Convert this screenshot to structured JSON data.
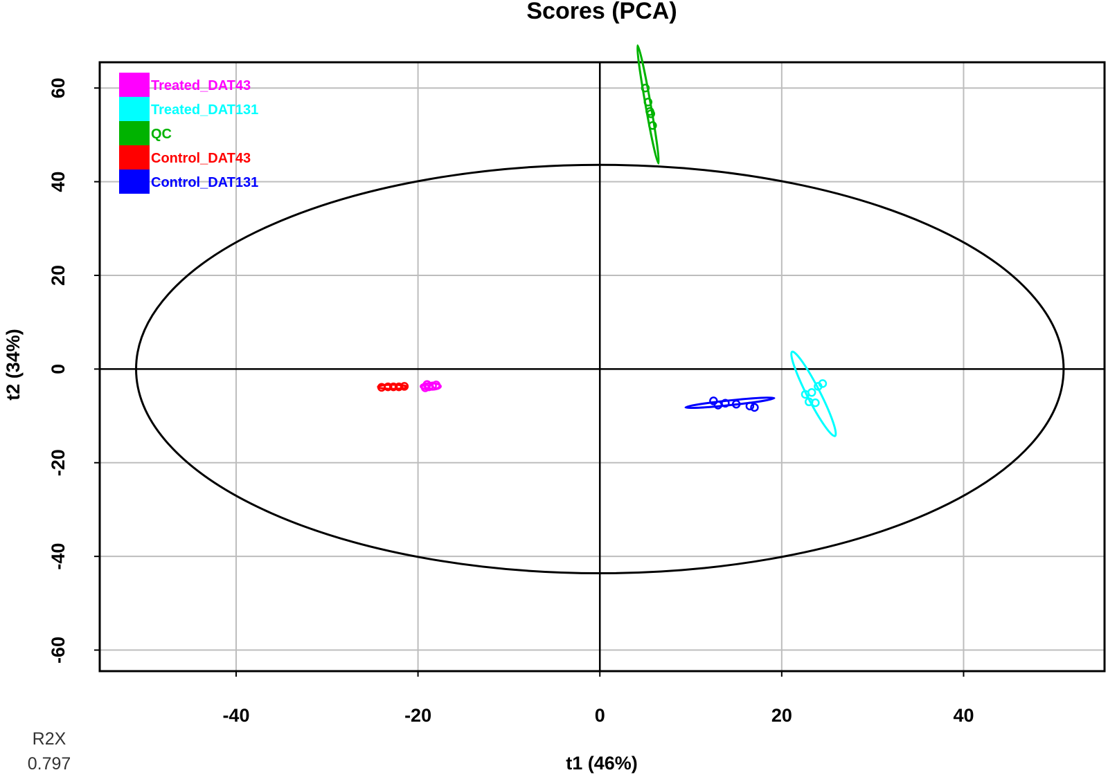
{
  "chart_data": {
    "type": "scatter",
    "title": "Scores (PCA)",
    "xlabel": "t1 (46%)",
    "ylabel": "t2 (34%)",
    "xlim": [
      -55,
      55.5
    ],
    "ylim": [
      -64.5,
      65.5
    ],
    "x_ticks": [
      -40,
      -20,
      0,
      20,
      40
    ],
    "y_ticks": [
      -60,
      -40,
      -20,
      0,
      20,
      40,
      60
    ],
    "grid": true,
    "legend_position": "top-left",
    "hotelling_ellipse": {
      "center": [
        0,
        0
      ],
      "rx": 51,
      "ry": 43.6
    },
    "series": [
      {
        "name": "Treated_DAT43",
        "color": "#ff00ff",
        "points": [
          [
            -19.2,
            -4.0
          ],
          [
            -18.8,
            -3.8
          ],
          [
            -18.4,
            -3.6
          ],
          [
            -18.0,
            -3.4
          ],
          [
            -19.0,
            -3.3
          ]
        ],
        "ellipse": {
          "center": [
            -18.6,
            -3.7
          ],
          "rx": 1.1,
          "ry": 0.7,
          "angle": 0
        }
      },
      {
        "name": "Treated_DAT131",
        "color": "#00ffff",
        "points": [
          [
            22.6,
            -5.4
          ],
          [
            23.3,
            -5.0
          ],
          [
            24.0,
            -3.7
          ],
          [
            24.5,
            -3.1
          ],
          [
            23.0,
            -7.0
          ],
          [
            23.7,
            -7.2
          ]
        ],
        "ellipse": {
          "center": [
            23.5,
            -5.3
          ],
          "rx": 5.2,
          "ry": 1.4,
          "angle": -63
        }
      },
      {
        "name": "QC",
        "color": "#00b300",
        "points": [
          [
            5.0,
            60.0
          ],
          [
            5.3,
            57.0
          ],
          [
            5.5,
            55.0
          ],
          [
            5.6,
            54.5
          ],
          [
            5.8,
            52.0
          ]
        ],
        "ellipse": {
          "center": [
            5.3,
            56.5
          ],
          "rx": 6.6,
          "ry": 0.55,
          "angle": -80
        }
      },
      {
        "name": "Control_DAT43",
        "color": "#ff0000",
        "points": [
          [
            -24.0,
            -3.9
          ],
          [
            -23.3,
            -3.8
          ],
          [
            -22.7,
            -3.8
          ],
          [
            -22.1,
            -3.8
          ],
          [
            -21.5,
            -3.7
          ]
        ],
        "ellipse": {
          "center": [
            -22.8,
            -3.8
          ],
          "rx": 1.6,
          "ry": 0.45,
          "angle": 0
        }
      },
      {
        "name": "Control_DAT131",
        "color": "#0000ff",
        "points": [
          [
            12.5,
            -6.8
          ],
          [
            13.0,
            -7.7
          ],
          [
            13.8,
            -7.3
          ],
          [
            15.0,
            -7.5
          ],
          [
            16.5,
            -7.9
          ],
          [
            17.0,
            -8.2
          ]
        ],
        "ellipse": {
          "center": [
            14.3,
            -7.2
          ],
          "rx": 4.9,
          "ry": 0.5,
          "angle": 6
        }
      }
    ],
    "footnote_label": "R2X",
    "footnote_value": "0.797"
  }
}
